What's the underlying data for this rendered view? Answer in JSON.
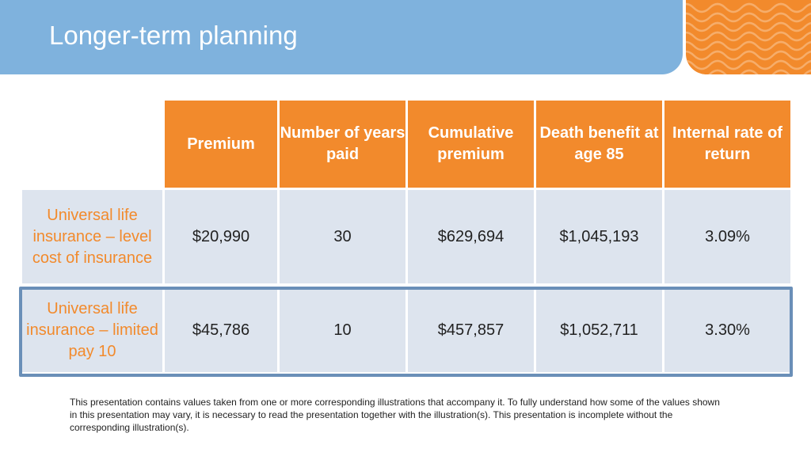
{
  "slide": {
    "title": "Longer-term planning"
  },
  "colors": {
    "title_bar": "#7fb2dd",
    "accent_orange": "#f28a2c",
    "row_fill": "#dde4ee",
    "highlight_border": "#6a8fb8"
  },
  "table": {
    "headers": [
      "Premium",
      "Number of years paid",
      "Cumulative premium",
      "Death benefit at age 85",
      "Internal rate of return"
    ],
    "rows": [
      {
        "label": "Universal life insurance – level cost of insurance",
        "values": [
          "$20,990",
          "30",
          "$629,694",
          "$1,045,193",
          "3.09%"
        ]
      },
      {
        "label": "Universal life insurance – limited pay 10",
        "values": [
          "$45,786",
          "10",
          "$457,857",
          "$1,052,711",
          "3.30%"
        ]
      }
    ]
  },
  "disclaimer": "This presentation contains values taken from one or more corresponding illustrations that accompany it. To fully understand how some of the values shown in this presentation may vary, it is necessary to read the presentation together with the illustration(s). This presentation is incomplete without the corresponding illustration(s)."
}
